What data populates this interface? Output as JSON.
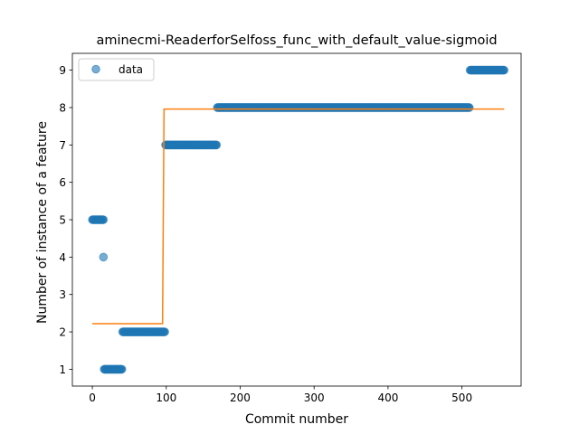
{
  "chart_data": {
    "type": "scatter",
    "title": "aminecmi-ReaderforSelfoss_func_with_default_value-sigmoid",
    "xlabel": "Commit number",
    "ylabel": "Number of instance of a feature",
    "xlim": [
      -27,
      580
    ],
    "ylim": [
      0.55,
      9.45
    ],
    "xticks": [
      0,
      100,
      200,
      300,
      400,
      500
    ],
    "yticks": [
      1,
      2,
      3,
      4,
      5,
      6,
      7,
      8,
      9
    ],
    "grid": false,
    "legend": {
      "placement": "top-left",
      "entries": [
        "data"
      ]
    },
    "colors": {
      "data": "#1f77b4",
      "fit": "#ff7f0e"
    },
    "series": [
      {
        "name": "data",
        "kind": "scatter",
        "runs": [
          {
            "x_start": 0,
            "x_end": 15,
            "y": 5
          },
          {
            "x_start": 15,
            "x_end": 15,
            "y": 4
          },
          {
            "x_start": 16,
            "x_end": 40,
            "y": 1
          },
          {
            "x_start": 41,
            "x_end": 98,
            "y": 2
          },
          {
            "x_start": 99,
            "x_end": 168,
            "y": 7
          },
          {
            "x_start": 169,
            "x_end": 510,
            "y": 8
          },
          {
            "x_start": 511,
            "x_end": 557,
            "y": 9
          }
        ]
      },
      {
        "kind": "line",
        "points": [
          [
            0,
            2.22
          ],
          [
            95,
            2.22
          ],
          [
            97,
            7.96
          ],
          [
            557,
            7.96
          ]
        ]
      }
    ]
  }
}
